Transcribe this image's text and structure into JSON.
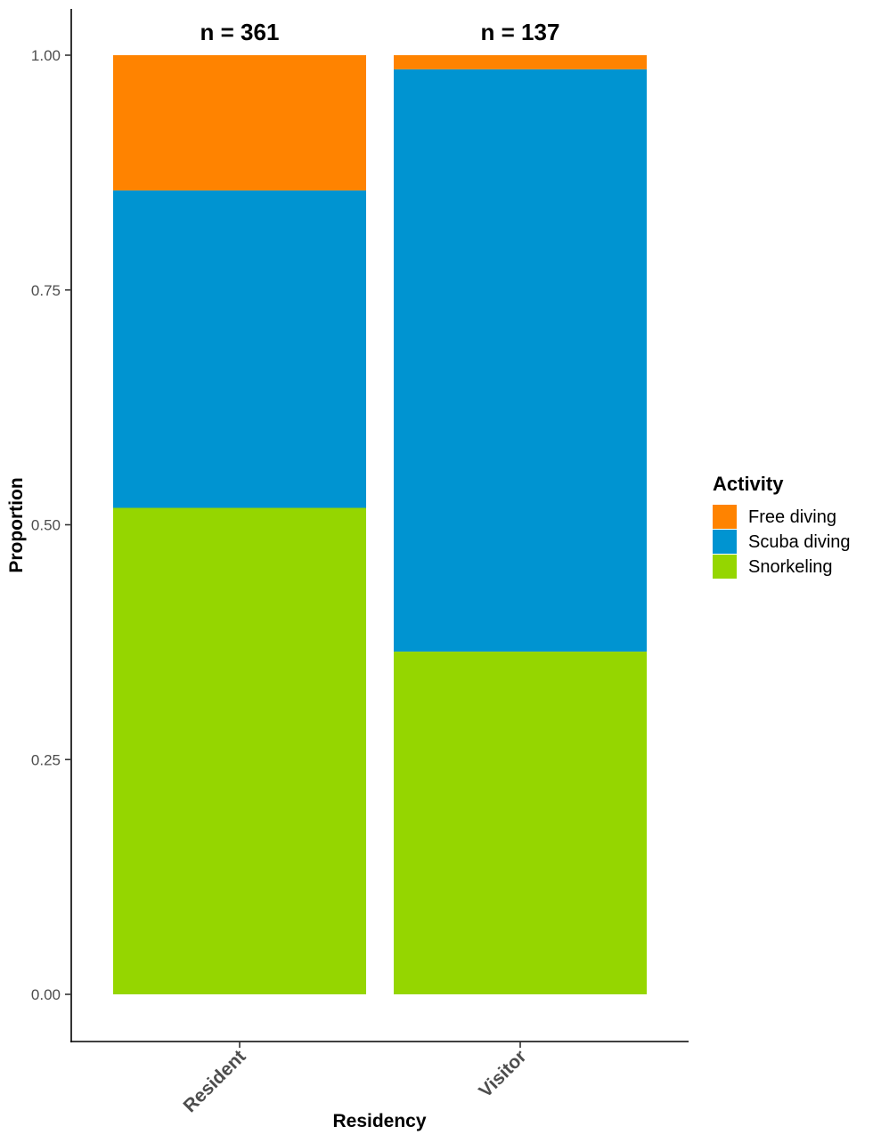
{
  "chart_data": {
    "type": "bar",
    "stacked": true,
    "categories": [
      "Resident",
      "Visitor"
    ],
    "annotations": [
      "n = 361",
      "n = 137"
    ],
    "series": [
      {
        "name": "Snorkeling",
        "color": "#95D600",
        "values": [
          0.518,
          0.365
        ]
      },
      {
        "name": "Scuba diving",
        "color": "#0094D1",
        "values": [
          0.338,
          0.62
        ]
      },
      {
        "name": "Free diving",
        "color": "#FF8300",
        "values": [
          0.144,
          0.015
        ]
      }
    ],
    "xlabel": "Residency",
    "ylabel": "Proportion",
    "yticks": [
      "0.00",
      "0.25",
      "0.50",
      "0.75",
      "1.00"
    ],
    "ytick_values": [
      0,
      0.25,
      0.5,
      0.75,
      1.0
    ],
    "ylim": [
      0,
      1
    ],
    "grid": false,
    "legend": {
      "title": "Activity",
      "placement": "right",
      "items": [
        "Free diving",
        "Scuba diving",
        "Snorkeling"
      ]
    }
  }
}
